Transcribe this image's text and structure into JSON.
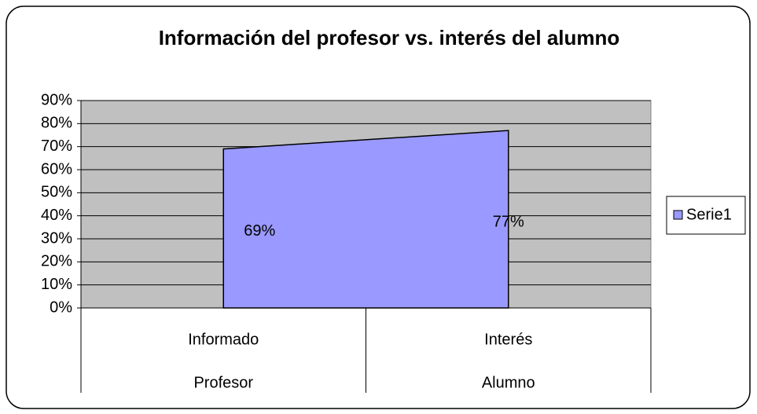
{
  "chart_data": {
    "type": "area",
    "title": "Información del profesor vs. interés del alumno",
    "categories": [
      "Informado",
      "Interés"
    ],
    "category_groups": [
      "Profesor",
      "Alumno"
    ],
    "series": [
      {
        "name": "Serie1",
        "color": "#9999ff",
        "values": [
          69,
          77
        ],
        "value_labels": [
          "69%",
          "77%"
        ]
      }
    ],
    "ylim": [
      0,
      90
    ],
    "yticks": [
      {
        "value": 0,
        "label": "0%"
      },
      {
        "value": 10,
        "label": "10%"
      },
      {
        "value": 20,
        "label": "20%"
      },
      {
        "value": 30,
        "label": "30%"
      },
      {
        "value": 40,
        "label": "40%"
      },
      {
        "value": 50,
        "label": "50%"
      },
      {
        "value": 60,
        "label": "60%"
      },
      {
        "value": 70,
        "label": "70%"
      },
      {
        "value": 80,
        "label": "80%"
      },
      {
        "value": 90,
        "label": "90%"
      }
    ],
    "grid": true,
    "plot_background": "#c0c0c0",
    "legend": "right"
  }
}
